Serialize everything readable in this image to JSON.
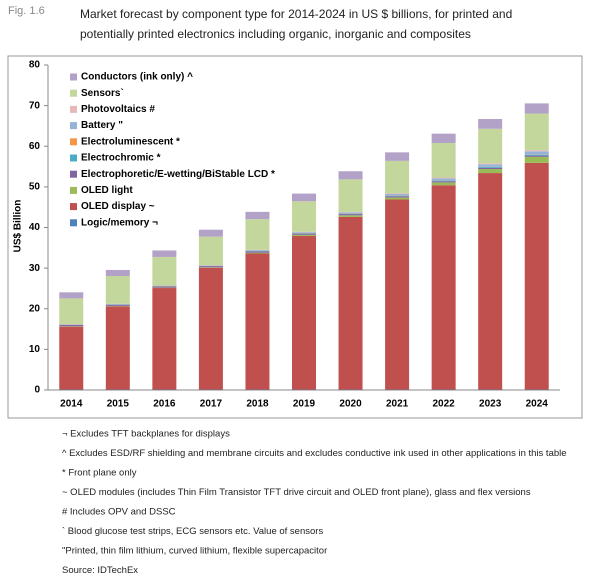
{
  "figure_label": "Fig. 1.6",
  "chart_data": {
    "type": "stacked-bar",
    "title": "Market forecast by component type for 2014-2024 in US $ billions, for printed and potentially printed electronics including organic, inorganic and composites",
    "y_label": "US$ Billion",
    "categories": [
      "2014",
      "2015",
      "2016",
      "2017",
      "2018",
      "2019",
      "2020",
      "2021",
      "2022",
      "2023",
      "2024"
    ],
    "ylim": [
      0,
      80
    ],
    "yticks": [
      0,
      10,
      20,
      30,
      40,
      50,
      60,
      70,
      80
    ],
    "legend": "top-left",
    "series": [
      {
        "name": "Logic/memory ¬",
        "color": "#4f81bd",
        "values": [
          0.1,
          0.1,
          0.1,
          0.1,
          0.1,
          0.1,
          0.1,
          0.1,
          0.1,
          0.1,
          0.1
        ]
      },
      {
        "name": "OLED display ~",
        "color": "#c0504d",
        "values": [
          15.5,
          20.5,
          25,
          30,
          33.5,
          37.8,
          42.5,
          46.8,
          50.3,
          53.3,
          55.8
        ]
      },
      {
        "name": "OLED light",
        "color": "#9bbb59",
        "values": [
          0.1,
          0.1,
          0.1,
          0.1,
          0.2,
          0.3,
          0.4,
          0.5,
          0.7,
          1,
          1.5
        ]
      },
      {
        "name": "Electrophoretic/E-wetting/BiStable LCD *",
        "color": "#8064a2",
        "values": [
          0.3,
          0.3,
          0.3,
          0.3,
          0.3,
          0.3,
          0.3,
          0.3,
          0.3,
          0.3,
          0.3
        ]
      },
      {
        "name": "Electrochromic *",
        "color": "#4bacc6",
        "values": [
          0.05,
          0.05,
          0.05,
          0.05,
          0.1,
          0.1,
          0.1,
          0.1,
          0.15,
          0.2,
          0.2
        ]
      },
      {
        "name": "Electroluminescent *",
        "color": "#f79646",
        "values": [
          0.05,
          0.05,
          0.05,
          0.05,
          0.05,
          0.05,
          0.05,
          0.05,
          0.05,
          0.05,
          0.05
        ]
      },
      {
        "name": "Battery \"",
        "color": "#95b3d7",
        "values": [
          0.1,
          0.1,
          0.1,
          0.1,
          0.2,
          0.2,
          0.3,
          0.4,
          0.5,
          0.6,
          0.8
        ]
      },
      {
        "name": "Photovoltaics #",
        "color": "#e6b9b8",
        "values": [
          0.05,
          0.05,
          0.05,
          0.05,
          0.1,
          0.1,
          0.1,
          0.15,
          0.2,
          0.25,
          0.3
        ]
      },
      {
        "name": "Sensors`",
        "color": "#c3d69b",
        "values": [
          6.3,
          6.8,
          7,
          7,
          7.5,
          7.5,
          8,
          8,
          8.5,
          8.5,
          9
        ]
      },
      {
        "name": "Conductors (ink only) ^",
        "color": "#b3a2c7",
        "values": [
          1.5,
          1.5,
          1.6,
          1.7,
          1.8,
          1.9,
          2,
          2.1,
          2.3,
          2.4,
          2.5
        ]
      }
    ]
  },
  "notes": [
    "¬ Excludes TFT backplanes for displays",
    "^ Excludes ESD/RF shielding and membrane circuits and excludes conductive ink used in other applications in this table",
    "* Front plane only",
    "~ OLED modules (includes Thin Film Transistor TFT drive circuit and OLED front plane), glass and flex versions",
    "# Includes OPV and DSSC",
    "` Blood glucose test strips, ECG sensors etc. Value of sensors",
    "\"Printed, thin film lithium, curved lithium, flexible supercapacitor",
    "Source: IDTechEx"
  ]
}
